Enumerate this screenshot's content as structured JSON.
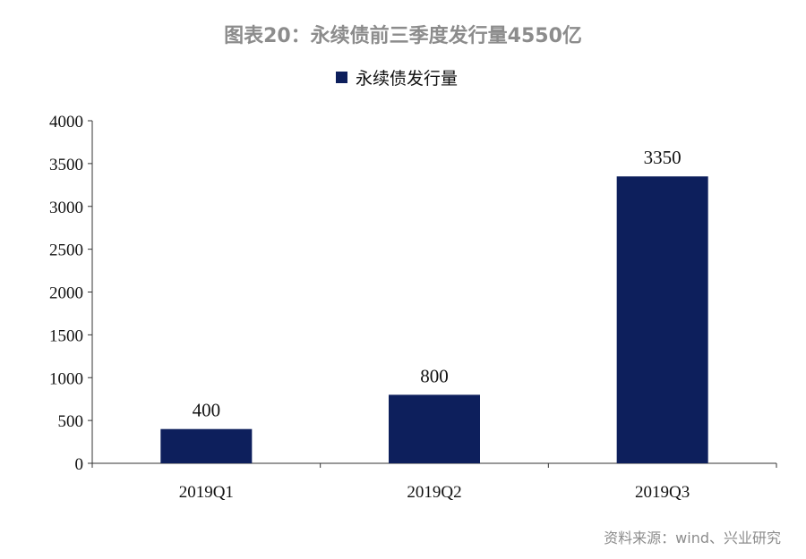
{
  "title": "图表20：永续债前三季度发行量4550亿",
  "source": "资料来源：wind、兴业研究",
  "colors": {
    "bar": "#0d1f5c",
    "axis": "#333333",
    "title": "#8c8c8c"
  },
  "chart_data": {
    "type": "bar",
    "categories": [
      "2019Q1",
      "2019Q2",
      "2019Q3"
    ],
    "series": [
      {
        "name": "永续债发行量",
        "values": [
          400,
          800,
          3350
        ]
      }
    ],
    "data_labels": [
      "400",
      "800",
      "3350"
    ],
    "ylim": [
      0,
      4000
    ],
    "yticks": [
      0,
      500,
      1000,
      1500,
      2000,
      2500,
      3000,
      3500,
      4000
    ],
    "xlabel": "",
    "ylabel": "",
    "grid": false,
    "legend_position": "top-center"
  }
}
